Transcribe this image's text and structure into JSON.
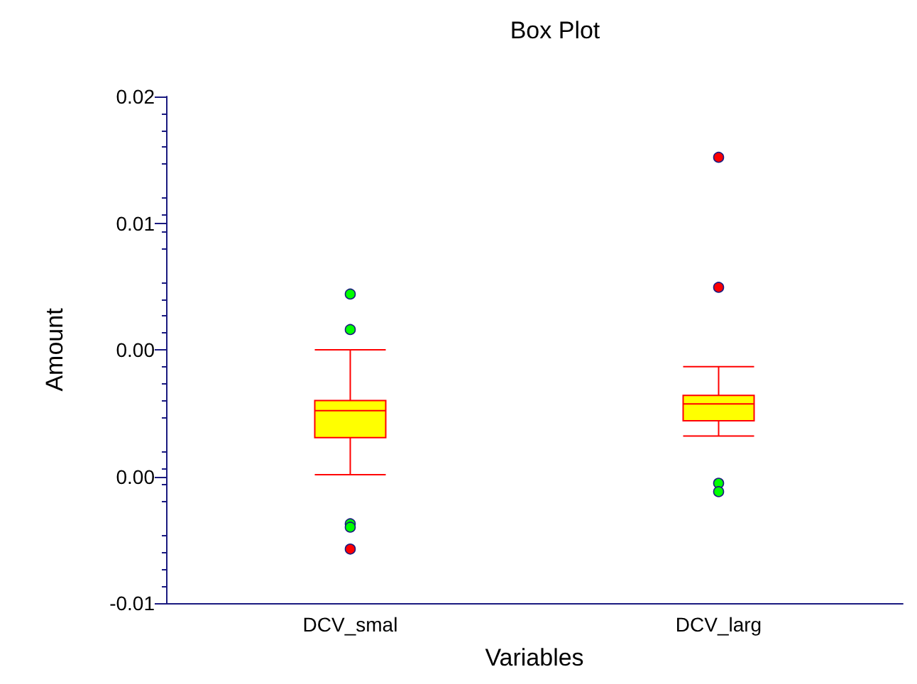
{
  "chart_data": {
    "type": "box",
    "title": "Box Plot",
    "xlabel": "Variables",
    "ylabel": "Amount",
    "categories": [
      "DCV_smal",
      "DCV_larg"
    ],
    "ylim": [
      -0.01,
      0.02
    ],
    "yticks": [
      {
        "value": -0.01,
        "label": "-0.01"
      },
      {
        "value": -0.0025,
        "label": "0.00"
      },
      {
        "value": 0.005,
        "label": "0.00"
      },
      {
        "value": 0.0125,
        "label": "0.01"
      },
      {
        "value": 0.02,
        "label": "0.02"
      }
    ],
    "grid": false,
    "series": [
      {
        "color": "#ffff00",
        "boxes": [
          {
            "low": -0.0024,
            "q1": -0.0002,
            "median": 0.0014,
            "q3": 0.002,
            "high": 0.005
          },
          {
            "low": -0.0001,
            "q1": 0.0008,
            "median": 0.0018,
            "q3": 0.0023,
            "high": 0.004
          }
        ]
      },
      {
        "type": "scatter",
        "color": "#00ff00",
        "x": [
          "DCV_smal",
          "DCV_smal",
          "DCV_smal",
          "DCV_smal",
          "DCV_larg",
          "DCV_larg"
        ],
        "values": [
          0.0083,
          0.0062,
          -0.0053,
          -0.0055,
          -0.0029,
          -0.0034
        ]
      },
      {
        "type": "scatter",
        "color": "#ff0000",
        "x": [
          "DCV_smal",
          "DCV_larg",
          "DCV_larg"
        ],
        "values": [
          -0.0068,
          0.0164,
          0.0087
        ]
      }
    ]
  }
}
